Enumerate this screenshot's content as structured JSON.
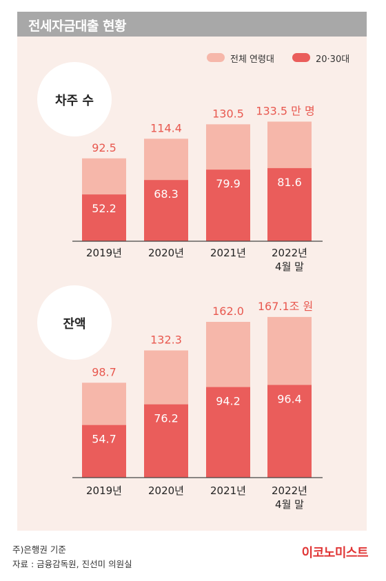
{
  "title": "전세자금대출 현황",
  "legend": {
    "total": "전체 연령대",
    "young": "20·30대"
  },
  "colors": {
    "total": "#f6b7aa",
    "young": "#ea5d5b",
    "value_label": "#e8584f",
    "axis": "#444444"
  },
  "chart_data": [
    {
      "type": "bar",
      "title": "차주 수",
      "unit": "만 명",
      "categories": [
        "2019년",
        "2020년",
        "2021년",
        "2022년\n4월 말"
      ],
      "series": [
        {
          "name": "전체 연령대",
          "values": [
            92.5,
            114.4,
            130.5,
            133.5
          ]
        },
        {
          "name": "20·30대",
          "values": [
            52.2,
            68.3,
            79.9,
            81.6
          ]
        }
      ],
      "total_labels": [
        "92.5",
        "114.4",
        "130.5",
        "133.5 만 명"
      ],
      "young_labels": [
        "52.2",
        "68.3",
        "79.9",
        "81.6"
      ]
    },
    {
      "type": "bar",
      "title": "잔액",
      "unit": "조 원",
      "categories": [
        "2019년",
        "2020년",
        "2021년",
        "2022년\n4월 말"
      ],
      "series": [
        {
          "name": "전체 연령대",
          "values": [
            98.7,
            132.3,
            162.0,
            167.1
          ]
        },
        {
          "name": "20·30대",
          "values": [
            54.7,
            76.2,
            94.2,
            96.4
          ]
        }
      ],
      "total_labels": [
        "98.7",
        "132.3",
        "162.0",
        "167.1조 원"
      ],
      "young_labels": [
        "54.7",
        "76.2",
        "94.2",
        "96.4"
      ]
    }
  ],
  "footer": {
    "note": "주)은행권 기준",
    "source": "자료 : 금융감독원, 진선미 의원실"
  },
  "brand": "이코노미스트"
}
